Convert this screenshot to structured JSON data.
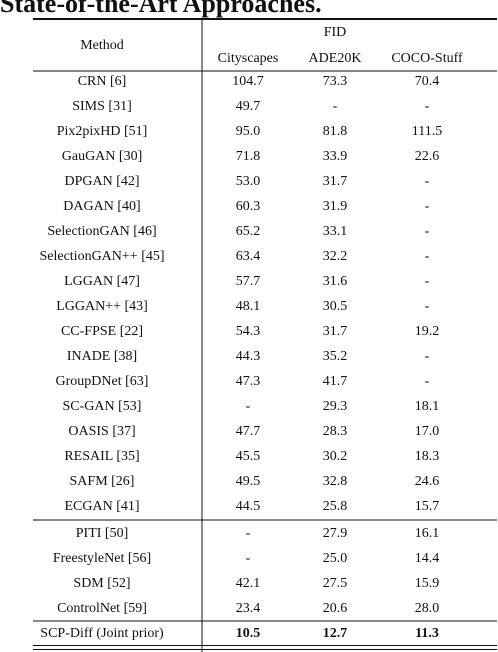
{
  "title": "State-of-the-Art Approaches.",
  "table": {
    "method_header": "Method",
    "group_header": "FID",
    "columns": [
      "Cityscapes",
      "ADE20K",
      "COCO-Stuff"
    ],
    "groups": [
      [
        [
          "CRN [6]",
          "104.7",
          "73.3",
          "70.4"
        ],
        [
          "SIMS [31]",
          "49.7",
          "-",
          "-"
        ],
        [
          "Pix2pixHD [51]",
          "95.0",
          "81.8",
          "111.5"
        ],
        [
          "GauGAN [30]",
          "71.8",
          "33.9",
          "22.6"
        ],
        [
          "DPGAN [42]",
          "53.0",
          "31.7",
          "-"
        ],
        [
          "DAGAN [40]",
          "60.3",
          "31.9",
          "-"
        ],
        [
          "SelectionGAN [46]",
          "65.2",
          "33.1",
          "-"
        ],
        [
          "SelectionGAN++ [45]",
          "63.4",
          "32.2",
          "-"
        ],
        [
          "LGGAN [47]",
          "57.7",
          "31.6",
          "-"
        ],
        [
          "LGGAN++ [43]",
          "48.1",
          "30.5",
          "-"
        ],
        [
          "CC-FPSE [22]",
          "54.3",
          "31.7",
          "19.2"
        ],
        [
          "INADE [38]",
          "44.3",
          "35.2",
          "-"
        ],
        [
          "GroupDNet [63]",
          "47.3",
          "41.7",
          "-"
        ],
        [
          "SC-GAN [53]",
          "-",
          "29.3",
          "18.1"
        ],
        [
          "OASIS [37]",
          "47.7",
          "28.3",
          "17.0"
        ],
        [
          "RESAIL [35]",
          "45.5",
          "30.2",
          "18.3"
        ],
        [
          "SAFM [26]",
          "49.5",
          "32.8",
          "24.6"
        ],
        [
          "ECGAN [41]",
          "44.5",
          "25.8",
          "15.7"
        ]
      ],
      [
        [
          "PITI [50]",
          "-",
          "27.9",
          "16.1"
        ],
        [
          "FreestyleNet [56]",
          "-",
          "25.0",
          "14.4"
        ],
        [
          "SDM [52]",
          "42.1",
          "27.5",
          "15.9"
        ],
        [
          "ControlNet [59]",
          "23.4",
          "20.6",
          "28.0"
        ]
      ],
      [
        [
          "SCP-Diff (Joint prior)",
          "10.5",
          "12.7",
          "11.3"
        ]
      ]
    ],
    "bold_group": 2
  }
}
